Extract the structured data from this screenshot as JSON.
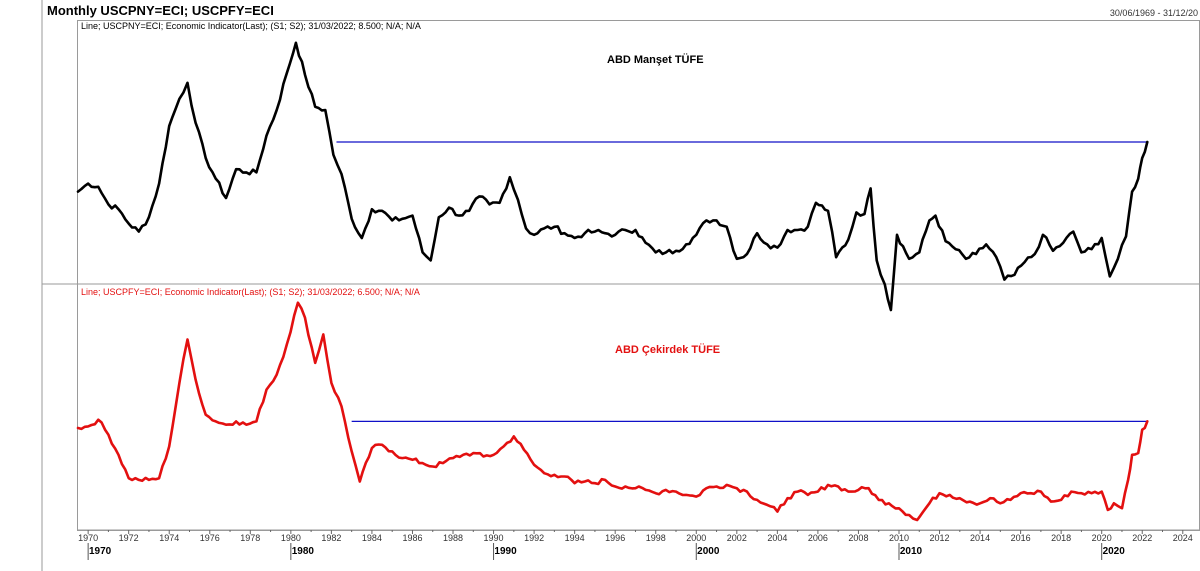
{
  "header": {
    "title": "Monthly USCPNY=ECI; USCPFY=ECI",
    "range": "30/06/1969 - 31/12/20"
  },
  "colors": {
    "headline": "#000000",
    "core": "#e31010",
    "reference_line": "#1010c8",
    "frame": "#9a9a9a",
    "decade_line": "#555555"
  },
  "chart_data": [
    {
      "type": "line",
      "panel": "top",
      "legend": "Line; USCPNY=ECI; Economic Indicator(Last); (S1; S2); 31/03/2022; 8.500; N/A; N/A",
      "annotation": "ABD Manşet TÜFE",
      "last_value": 8.5,
      "ylim": [
        0,
        15
      ],
      "reference_line": {
        "value": 8.5,
        "from": 1982.25,
        "to": 2022.25
      },
      "series": [
        {
          "points": [
            [
              1969.5,
              5.4
            ],
            [
              1970.0,
              5.9
            ],
            [
              1970.5,
              5.7
            ],
            [
              1971.0,
              4.6
            ],
            [
              1971.5,
              4.3
            ],
            [
              1972.0,
              3.4
            ],
            [
              1972.5,
              2.9
            ],
            [
              1973.0,
              3.8
            ],
            [
              1973.5,
              5.9
            ],
            [
              1974.0,
              9.5
            ],
            [
              1974.5,
              11.2
            ],
            [
              1974.9,
              12.2
            ],
            [
              1975.3,
              9.7
            ],
            [
              1975.8,
              7.5
            ],
            [
              1976.3,
              6.2
            ],
            [
              1976.8,
              5.0
            ],
            [
              1977.3,
              6.8
            ],
            [
              1977.8,
              6.6
            ],
            [
              1978.3,
              6.6
            ],
            [
              1978.8,
              8.9
            ],
            [
              1979.3,
              10.5
            ],
            [
              1979.8,
              12.8
            ],
            [
              1980.25,
              14.7
            ],
            [
              1980.7,
              12.7
            ],
            [
              1981.2,
              10.7
            ],
            [
              1981.7,
              10.5
            ],
            [
              1982.1,
              7.7
            ],
            [
              1982.5,
              6.5
            ],
            [
              1983.0,
              3.7
            ],
            [
              1983.5,
              2.5
            ],
            [
              1984.0,
              4.3
            ],
            [
              1984.5,
              4.2
            ],
            [
              1985.0,
              3.6
            ],
            [
              1985.5,
              3.7
            ],
            [
              1986.0,
              3.9
            ],
            [
              1986.5,
              1.6
            ],
            [
              1986.9,
              1.1
            ],
            [
              1987.3,
              3.8
            ],
            [
              1987.8,
              4.4
            ],
            [
              1988.3,
              3.9
            ],
            [
              1988.8,
              4.2
            ],
            [
              1989.3,
              5.1
            ],
            [
              1989.8,
              4.6
            ],
            [
              1990.3,
              4.7
            ],
            [
              1990.8,
              6.3
            ],
            [
              1991.2,
              4.9
            ],
            [
              1991.6,
              3.1
            ],
            [
              1992.0,
              2.7
            ],
            [
              1992.5,
              3.1
            ],
            [
              1993.0,
              3.2
            ],
            [
              1993.5,
              2.8
            ],
            [
              1994.0,
              2.5
            ],
            [
              1994.5,
              2.8
            ],
            [
              1995.0,
              2.9
            ],
            [
              1995.5,
              2.8
            ],
            [
              1996.0,
              2.7
            ],
            [
              1996.5,
              3.0
            ],
            [
              1997.0,
              3.0
            ],
            [
              1997.5,
              2.2
            ],
            [
              1998.0,
              1.6
            ],
            [
              1998.5,
              1.6
            ],
            [
              1999.0,
              1.7
            ],
            [
              1999.5,
              2.1
            ],
            [
              2000.0,
              2.7
            ],
            [
              2000.5,
              3.6
            ],
            [
              2001.0,
              3.6
            ],
            [
              2001.5,
              3.2
            ],
            [
              2002.0,
              1.2
            ],
            [
              2002.5,
              1.5
            ],
            [
              2003.0,
              2.8
            ],
            [
              2003.5,
              2.1
            ],
            [
              2004.0,
              1.9
            ],
            [
              2004.5,
              3.0
            ],
            [
              2005.0,
              3.0
            ],
            [
              2005.5,
              3.2
            ],
            [
              2005.9,
              4.7
            ],
            [
              2006.5,
              4.2
            ],
            [
              2006.9,
              1.3
            ],
            [
              2007.5,
              2.4
            ],
            [
              2007.9,
              4.1
            ],
            [
              2008.3,
              4.0
            ],
            [
              2008.6,
              5.6
            ],
            [
              2008.9,
              1.1
            ],
            [
              2009.3,
              -0.4
            ],
            [
              2009.6,
              -2.0
            ],
            [
              2009.9,
              2.7
            ],
            [
              2010.5,
              1.2
            ],
            [
              2011.0,
              1.6
            ],
            [
              2011.5,
              3.6
            ],
            [
              2011.8,
              3.9
            ],
            [
              2012.3,
              2.3
            ],
            [
              2012.8,
              1.8
            ],
            [
              2013.3,
              1.2
            ],
            [
              2013.8,
              1.5
            ],
            [
              2014.3,
              2.1
            ],
            [
              2014.8,
              1.3
            ],
            [
              2015.2,
              -0.1
            ],
            [
              2015.7,
              0.2
            ],
            [
              2016.2,
              1.0
            ],
            [
              2016.7,
              1.5
            ],
            [
              2017.1,
              2.7
            ],
            [
              2017.6,
              1.7
            ],
            [
              2018.1,
              2.2
            ],
            [
              2018.6,
              2.9
            ],
            [
              2019.0,
              1.6
            ],
            [
              2019.5,
              1.8
            ],
            [
              2020.0,
              2.5
            ],
            [
              2020.4,
              0.1
            ],
            [
              2020.8,
              1.2
            ],
            [
              2021.2,
              2.6
            ],
            [
              2021.5,
              5.4
            ],
            [
              2021.8,
              6.2
            ],
            [
              2022.0,
              7.5
            ],
            [
              2022.25,
              8.5
            ]
          ]
        }
      ]
    },
    {
      "type": "line",
      "panel": "bottom",
      "legend": "Line; USCPFY=ECI; Economic Indicator(Last); (S1; S2); 31/03/2022; 6.500; N/A; N/A",
      "annotation": "ABD Çekirdek TÜFE",
      "last_value": 6.5,
      "ylim": [
        0,
        14
      ],
      "reference_line": {
        "value": 6.5,
        "from": 1983.0,
        "to": 2022.25
      },
      "series": [
        {
          "points": [
            [
              1969.5,
              6.1
            ],
            [
              1970.0,
              6.2
            ],
            [
              1970.5,
              6.6
            ],
            [
              1971.0,
              5.7
            ],
            [
              1971.5,
              4.5
            ],
            [
              1972.0,
              3.1
            ],
            [
              1972.5,
              3.0
            ],
            [
              1973.0,
              3.0
            ],
            [
              1973.5,
              3.1
            ],
            [
              1974.0,
              5.0
            ],
            [
              1974.5,
              8.8
            ],
            [
              1974.9,
              11.4
            ],
            [
              1975.3,
              9.0
            ],
            [
              1975.8,
              6.9
            ],
            [
              1976.3,
              6.5
            ],
            [
              1976.8,
              6.3
            ],
            [
              1977.3,
              6.5
            ],
            [
              1977.8,
              6.3
            ],
            [
              1978.3,
              6.5
            ],
            [
              1978.8,
              8.4
            ],
            [
              1979.3,
              9.3
            ],
            [
              1979.8,
              11.1
            ],
            [
              1980.35,
              13.6
            ],
            [
              1980.7,
              12.7
            ],
            [
              1981.2,
              10.0
            ],
            [
              1981.6,
              11.7
            ],
            [
              1982.0,
              8.8
            ],
            [
              1982.5,
              7.4
            ],
            [
              1983.0,
              4.7
            ],
            [
              1983.4,
              2.9
            ],
            [
              1984.0,
              4.9
            ],
            [
              1984.5,
              5.1
            ],
            [
              1985.0,
              4.7
            ],
            [
              1985.5,
              4.3
            ],
            [
              1986.0,
              4.2
            ],
            [
              1986.5,
              4.0
            ],
            [
              1987.0,
              3.8
            ],
            [
              1987.5,
              4.0
            ],
            [
              1988.0,
              4.3
            ],
            [
              1988.5,
              4.5
            ],
            [
              1989.0,
              4.6
            ],
            [
              1989.5,
              4.4
            ],
            [
              1990.0,
              4.5
            ],
            [
              1990.5,
              5.0
            ],
            [
              1991.0,
              5.6
            ],
            [
              1991.5,
              4.8
            ],
            [
              1992.0,
              3.9
            ],
            [
              1992.5,
              3.4
            ],
            [
              1993.0,
              3.3
            ],
            [
              1993.5,
              3.2
            ],
            [
              1994.0,
              2.8
            ],
            [
              1994.5,
              2.9
            ],
            [
              1995.0,
              2.8
            ],
            [
              1995.5,
              3.0
            ],
            [
              1996.0,
              2.6
            ],
            [
              1996.5,
              2.6
            ],
            [
              1997.0,
              2.5
            ],
            [
              1997.5,
              2.4
            ],
            [
              1998.0,
              2.2
            ],
            [
              1998.5,
              2.4
            ],
            [
              1999.0,
              2.3
            ],
            [
              1999.5,
              2.1
            ],
            [
              2000.0,
              2.0
            ],
            [
              2000.5,
              2.5
            ],
            [
              2001.0,
              2.6
            ],
            [
              2001.5,
              2.7
            ],
            [
              2002.0,
              2.5
            ],
            [
              2002.5,
              2.3
            ],
            [
              2003.0,
              1.8
            ],
            [
              2003.5,
              1.5
            ],
            [
              2004.0,
              1.1
            ],
            [
              2004.5,
              1.9
            ],
            [
              2005.0,
              2.3
            ],
            [
              2005.5,
              2.1
            ],
            [
              2006.0,
              2.3
            ],
            [
              2006.5,
              2.7
            ],
            [
              2007.0,
              2.6
            ],
            [
              2007.5,
              2.3
            ],
            [
              2008.0,
              2.4
            ],
            [
              2008.5,
              2.5
            ],
            [
              2009.0,
              1.8
            ],
            [
              2009.5,
              1.6
            ],
            [
              2010.0,
              1.3
            ],
            [
              2010.5,
              0.9
            ],
            [
              2010.9,
              0.6
            ],
            [
              2011.5,
              1.6
            ],
            [
              2012.0,
              2.2
            ],
            [
              2012.5,
              2.1
            ],
            [
              2013.0,
              1.9
            ],
            [
              2013.5,
              1.7
            ],
            [
              2014.0,
              1.6
            ],
            [
              2014.5,
              1.9
            ],
            [
              2015.0,
              1.6
            ],
            [
              2015.5,
              1.8
            ],
            [
              2016.0,
              2.2
            ],
            [
              2016.5,
              2.2
            ],
            [
              2017.0,
              2.3
            ],
            [
              2017.5,
              1.7
            ],
            [
              2018.0,
              1.8
            ],
            [
              2018.5,
              2.3
            ],
            [
              2019.0,
              2.2
            ],
            [
              2019.5,
              2.2
            ],
            [
              2020.0,
              2.3
            ],
            [
              2020.3,
              1.2
            ],
            [
              2020.6,
              1.6
            ],
            [
              2021.0,
              1.3
            ],
            [
              2021.3,
              3.0
            ],
            [
              2021.5,
              4.5
            ],
            [
              2021.8,
              4.6
            ],
            [
              2022.0,
              6.0
            ],
            [
              2022.25,
              6.5
            ]
          ]
        }
      ]
    }
  ],
  "x_axis": {
    "domain": [
      1969.5,
      2024.8
    ],
    "year_labels": [
      "1970",
      "1972",
      "1974",
      "1976",
      "1978",
      "1980",
      "1982",
      "1984",
      "1986",
      "1988",
      "1990",
      "1992",
      "1994",
      "1996",
      "1998",
      "2000",
      "2002",
      "2004",
      "2006",
      "2008",
      "2010",
      "2012",
      "2014",
      "2016",
      "2018",
      "2020",
      "2022",
      "2024"
    ],
    "decade_labels": [
      "1970",
      "1980",
      "1990",
      "2000",
      "2010",
      "2020"
    ]
  }
}
